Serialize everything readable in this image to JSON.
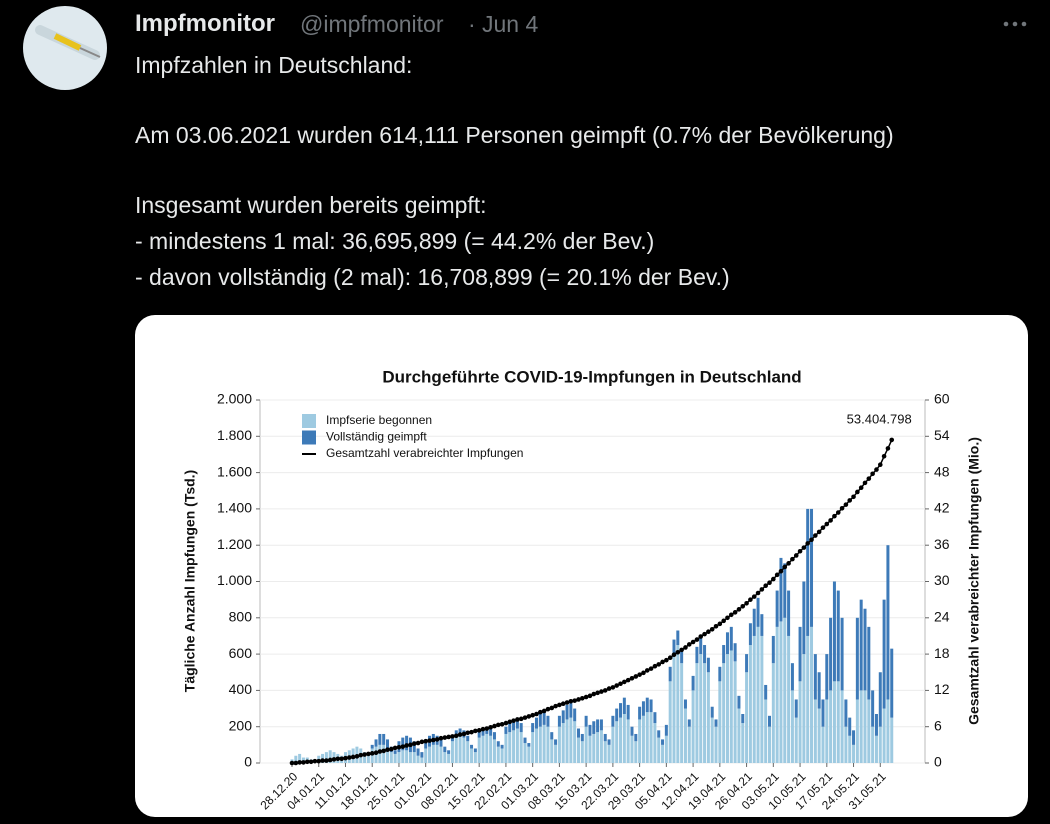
{
  "header": {
    "name": "Impfmonitor",
    "handle": "@impfmonitor",
    "separator": "·",
    "date": "Jun 4"
  },
  "tweet": {
    "lines": [
      "Impfzahlen in Deutschland:",
      "Am 03.06.2021 wurden 614,111 Personen geimpft (0.7% der Bevölkerung)",
      "Insgesamt wurden bereits geimpft:",
      "- mindestens 1 mal: 36,695,899 (= 44.2% der Bev.)",
      "- davon vollständig (2 mal): 16,708,899 (= 20.1% der Bev.)"
    ]
  },
  "chart_data": {
    "type": "bar",
    "stacked": true,
    "title": "Durchgeführte COVID-19-Impfungen in Deutschland",
    "y_label": "Tägliche Anzahl Impfungen (Tsd.)",
    "y2_label": "Gesamtzahl verabreichter Impfungen (Mio.)",
    "ylim": [
      0,
      2000
    ],
    "yticks": [
      0,
      200,
      400,
      600,
      800,
      {
        "value": 1000,
        "label": "1.000"
      },
      {
        "value": 1200,
        "label": "1.200"
      },
      {
        "value": 1400,
        "label": "1.400"
      },
      {
        "value": 1600,
        "label": "1.600"
      },
      {
        "value": 1800,
        "label": "1.800"
      },
      {
        "value": 2000,
        "label": "2.000"
      }
    ],
    "y2lim": [
      0,
      60
    ],
    "y2ticks": [
      0,
      6,
      12,
      18,
      24,
      30,
      36,
      42,
      48,
      54,
      60
    ],
    "grid": true,
    "legend": "top-left",
    "categories": [
      "28.12.20",
      null,
      null,
      null,
      null,
      null,
      null,
      "04.01.21",
      null,
      null,
      null,
      null,
      null,
      null,
      "11.01.21",
      null,
      null,
      null,
      null,
      null,
      null,
      "18.01.21",
      null,
      null,
      null,
      null,
      null,
      null,
      "25.01.21",
      null,
      null,
      null,
      null,
      null,
      null,
      "01.02.21",
      null,
      null,
      null,
      null,
      null,
      null,
      "08.02.21",
      null,
      null,
      null,
      null,
      null,
      null,
      "15.02.21",
      null,
      null,
      null,
      null,
      null,
      null,
      "22.02.21",
      null,
      null,
      null,
      null,
      null,
      null,
      "01.03.21",
      null,
      null,
      null,
      null,
      null,
      null,
      "08.03.21",
      null,
      null,
      null,
      null,
      null,
      null,
      "15.03.21",
      null,
      null,
      null,
      null,
      null,
      null,
      "22.03.21",
      null,
      null,
      null,
      null,
      null,
      null,
      "29.03.21",
      null,
      null,
      null,
      null,
      null,
      null,
      "05.04.21",
      null,
      null,
      null,
      null,
      null,
      null,
      "12.04.21",
      null,
      null,
      null,
      null,
      null,
      null,
      "19.04.21",
      null,
      null,
      null,
      null,
      null,
      null,
      "26.04.21",
      null,
      null,
      null,
      null,
      null,
      null,
      "03.05.21",
      null,
      null,
      null,
      null,
      null,
      null,
      "10.05.21",
      null,
      null,
      null,
      null,
      null,
      null,
      "17.05.21",
      null,
      null,
      null,
      null,
      null,
      null,
      "24.05.21",
      null,
      null,
      null,
      null,
      null,
      null,
      "31.05.21",
      null,
      null,
      null
    ],
    "series": [
      {
        "name": "Impfserie begonnen",
        "color": "#9ecae1",
        "values": [
          20,
          40,
          50,
          30,
          30,
          20,
          20,
          40,
          50,
          60,
          70,
          60,
          50,
          40,
          60,
          70,
          80,
          90,
          80,
          60,
          50,
          80,
          90,
          100,
          100,
          80,
          60,
          50,
          60,
          70,
          70,
          60,
          60,
          40,
          30,
          80,
          90,
          100,
          100,
          90,
          60,
          50,
          120,
          140,
          150,
          140,
          120,
          80,
          60,
          140,
          150,
          160,
          150,
          130,
          90,
          80,
          160,
          170,
          180,
          190,
          170,
          110,
          90,
          170,
          190,
          200,
          210,
          200,
          130,
          100,
          200,
          220,
          240,
          250,
          230,
          140,
          120,
          200,
          150,
          160,
          170,
          180,
          120,
          100,
          200,
          230,
          250,
          270,
          240,
          150,
          120,
          240,
          260,
          280,
          280,
          220,
          140,
          100,
          150,
          450,
          600,
          650,
          550,
          300,
          200,
          400,
          550,
          600,
          550,
          500,
          250,
          200,
          450,
          550,
          600,
          620,
          560,
          300,
          220,
          500,
          650,
          700,
          750,
          700,
          350,
          200,
          550,
          750,
          780,
          800,
          700,
          400,
          250,
          450,
          600,
          700,
          750,
          350,
          300,
          200,
          350,
          400,
          450,
          450,
          400,
          200,
          150,
          100,
          350,
          400,
          400,
          350,
          200,
          150,
          200,
          300,
          350,
          250
        ]
      },
      {
        "name": "Vollständig geimpft",
        "color": "#3d7ab8",
        "values": [
          0,
          0,
          0,
          0,
          0,
          0,
          0,
          0,
          0,
          0,
          0,
          0,
          0,
          0,
          0,
          0,
          0,
          0,
          0,
          0,
          0,
          20,
          40,
          60,
          60,
          50,
          30,
          20,
          60,
          70,
          80,
          80,
          60,
          40,
          30,
          50,
          60,
          60,
          50,
          40,
          30,
          20,
          30,
          40,
          40,
          40,
          30,
          20,
          20,
          30,
          40,
          40,
          40,
          40,
          30,
          20,
          40,
          50,
          60,
          60,
          50,
          30,
          20,
          50,
          60,
          70,
          70,
          60,
          40,
          30,
          60,
          70,
          80,
          80,
          70,
          50,
          40,
          60,
          60,
          70,
          70,
          60,
          40,
          30,
          60,
          70,
          80,
          90,
          80,
          50,
          40,
          70,
          80,
          80,
          70,
          60,
          40,
          30,
          60,
          80,
          80,
          80,
          70,
          50,
          40,
          80,
          90,
          100,
          100,
          80,
          60,
          40,
          80,
          100,
          120,
          130,
          100,
          70,
          50,
          100,
          120,
          150,
          160,
          120,
          80,
          60,
          150,
          200,
          350,
          300,
          250,
          150,
          100,
          300,
          400,
          700,
          650,
          250,
          200,
          150,
          250,
          400,
          550,
          500,
          400,
          150,
          100,
          80,
          450,
          500,
          450,
          400,
          200,
          120,
          300,
          600,
          850,
          380
        ]
      },
      {
        "name": "Gesamtzahl verabreichter Impfungen",
        "color": "#000000",
        "type": "line",
        "axis": "y2",
        "values": [
          0.0,
          0.0,
          0.1,
          0.1,
          0.2,
          0.2,
          0.3,
          0.3,
          0.4,
          0.4,
          0.5,
          0.6,
          0.7,
          0.7,
          0.8,
          0.9,
          1.0,
          1.1,
          1.3,
          1.4,
          1.5,
          1.6,
          1.7,
          1.9,
          2.0,
          2.2,
          2.3,
          2.5,
          2.6,
          2.7,
          2.9,
          3.0,
          3.2,
          3.3,
          3.5,
          3.6,
          3.7,
          3.8,
          3.9,
          4.1,
          4.2,
          4.3,
          4.4,
          4.5,
          4.7,
          4.8,
          5.0,
          5.1,
          5.3,
          5.4,
          5.6,
          5.7,
          5.9,
          6.1,
          6.3,
          6.4,
          6.6,
          6.8,
          7.0,
          7.2,
          7.3,
          7.5,
          7.7,
          7.9,
          8.1,
          8.4,
          8.6,
          8.9,
          9.1,
          9.4,
          9.6,
          9.8,
          10.0,
          10.2,
          10.3,
          10.5,
          10.7,
          10.9,
          11.1,
          11.4,
          11.6,
          11.8,
          12.0,
          12.3,
          12.5,
          12.8,
          13.1,
          13.4,
          13.7,
          14.0,
          14.3,
          14.6,
          14.9,
          15.3,
          15.6,
          16.0,
          16.3,
          16.7,
          17.0,
          17.4,
          17.9,
          18.3,
          18.7,
          19.1,
          19.6,
          20.0,
          20.4,
          20.9,
          21.3,
          21.7,
          22.1,
          22.6,
          23.0,
          23.5,
          24.0,
          24.5,
          24.9,
          25.4,
          25.9,
          26.4,
          27.0,
          27.5,
          28.1,
          28.7,
          29.3,
          29.8,
          30.4,
          31.1,
          31.7,
          32.4,
          33.0,
          33.7,
          34.3,
          35.0,
          35.6,
          36.3,
          36.9,
          37.6,
          38.2,
          38.9,
          39.5,
          40.1,
          40.8,
          41.4,
          42.1,
          42.7,
          43.4,
          44.0,
          44.8,
          45.5,
          46.3,
          47.0,
          47.8,
          48.5,
          49.3,
          50.7,
          52.0,
          53.404798
        ],
        "value_labels": [
          null,
          null,
          null,
          null,
          null,
          null,
          null,
          null,
          null,
          null,
          null,
          null,
          null,
          null,
          null,
          null,
          null,
          null,
          null,
          null,
          null,
          null,
          null,
          null,
          null,
          null,
          null,
          null,
          null,
          null,
          null,
          null,
          null,
          null,
          null,
          null,
          null,
          null,
          null,
          null,
          null,
          null,
          null,
          null,
          null,
          null,
          null,
          null,
          null,
          null,
          null,
          null,
          null,
          null,
          null,
          null,
          null,
          null,
          null,
          null,
          null,
          null,
          null,
          null,
          null,
          null,
          null,
          null,
          null,
          null,
          null,
          null,
          null,
          null,
          null,
          null,
          null,
          null,
          null,
          null,
          null,
          null,
          null,
          null,
          null,
          null,
          null,
          null,
          null,
          null,
          null,
          null,
          null,
          null,
          null,
          null,
          null,
          null,
          null,
          null,
          null,
          null,
          null,
          null,
          null,
          null,
          null,
          null,
          null,
          null,
          null,
          null,
          null,
          null,
          null,
          null,
          null,
          null,
          null,
          null,
          null,
          null,
          null,
          null,
          null,
          null,
          null,
          null,
          null,
          null,
          null,
          null,
          null,
          null,
          null,
          null,
          null,
          null,
          null,
          null,
          null,
          null,
          null,
          null,
          null,
          null,
          null,
          null,
          null,
          null,
          null,
          null,
          null,
          null,
          null,
          null,
          null,
          "53.404.798"
        ]
      }
    ]
  }
}
